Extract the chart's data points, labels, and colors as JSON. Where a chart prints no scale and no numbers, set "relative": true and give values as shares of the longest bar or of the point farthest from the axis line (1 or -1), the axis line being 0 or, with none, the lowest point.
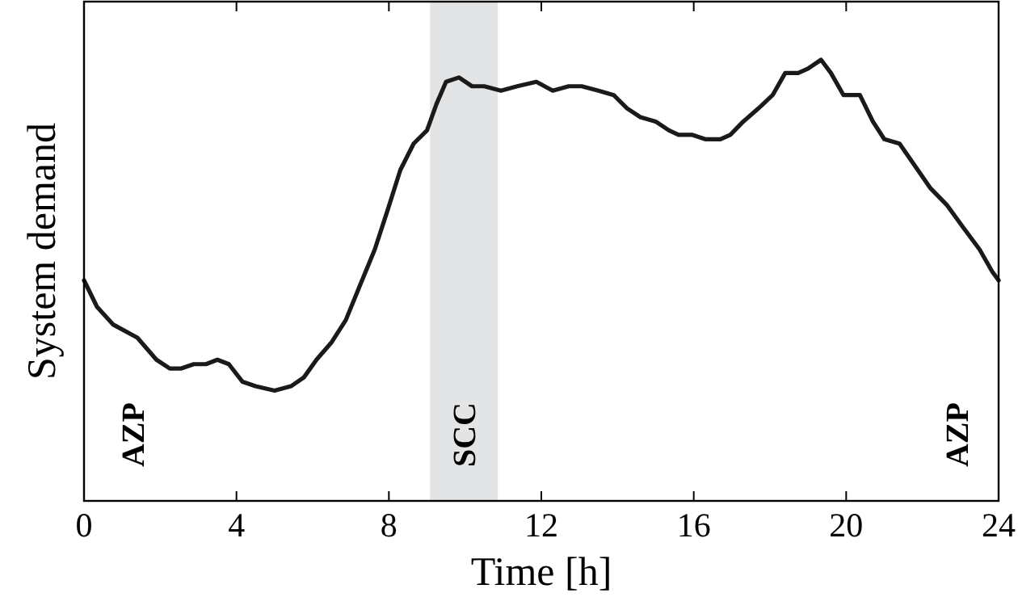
{
  "chart_data": {
    "type": "line",
    "xlabel": "Time [h]",
    "ylabel": "System demand",
    "relative": true,
    "xlim": [
      0,
      24
    ],
    "xticks": [
      0,
      4,
      8,
      12,
      16,
      20,
      24
    ],
    "tick_labels": "x",
    "grid": false,
    "marker": "none",
    "line_style": "solid",
    "x": [
      0,
      0.34,
      0.76,
      1.4,
      1.9,
      2.25,
      2.54,
      2.88,
      3.2,
      3.5,
      3.8,
      4.16,
      4.5,
      5.0,
      5.43,
      5.77,
      6.1,
      6.5,
      6.87,
      7.2,
      7.63,
      7.97,
      8.3,
      8.65,
      9.0,
      9.25,
      9.5,
      9.84,
      10.18,
      10.5,
      10.94,
      11.37,
      11.87,
      12.3,
      12.72,
      13.06,
      13.5,
      13.9,
      14.25,
      14.6,
      15.0,
      15.35,
      15.6,
      15.95,
      16.3,
      16.7,
      16.96,
      17.3,
      17.7,
      18.07,
      18.4,
      18.74,
      19.0,
      19.34,
      19.6,
      19.93,
      20.36,
      20.7,
      21.0,
      21.4,
      21.8,
      22.2,
      22.65,
      23.07,
      23.5,
      23.83,
      24
    ],
    "series": [
      {
        "color": "#1a1a1a",
        "values": [
          0.5,
          0.44,
          0.4,
          0.37,
          0.32,
          0.3,
          0.3,
          0.31,
          0.31,
          0.32,
          0.31,
          0.27,
          0.26,
          0.25,
          0.26,
          0.28,
          0.32,
          0.36,
          0.41,
          0.48,
          0.57,
          0.66,
          0.75,
          0.81,
          0.84,
          0.9,
          0.95,
          0.96,
          0.94,
          0.94,
          0.93,
          0.94,
          0.95,
          0.93,
          0.94,
          0.94,
          0.93,
          0.92,
          0.89,
          0.87,
          0.86,
          0.84,
          0.83,
          0.83,
          0.82,
          0.82,
          0.83,
          0.86,
          0.89,
          0.92,
          0.97,
          0.97,
          0.98,
          1,
          0.97,
          0.92,
          0.92,
          0.86,
          0.82,
          0.81,
          0.76,
          0.71,
          0.67,
          0.62,
          0.57,
          0.52,
          0.5
        ]
      }
    ],
    "bands": [
      {
        "axis": "x",
        "from": 9.08,
        "to": 10.86,
        "label": "SCC",
        "color": "#e3e4e6"
      }
    ],
    "annotations": [
      "AZP",
      "AZP"
    ]
  }
}
